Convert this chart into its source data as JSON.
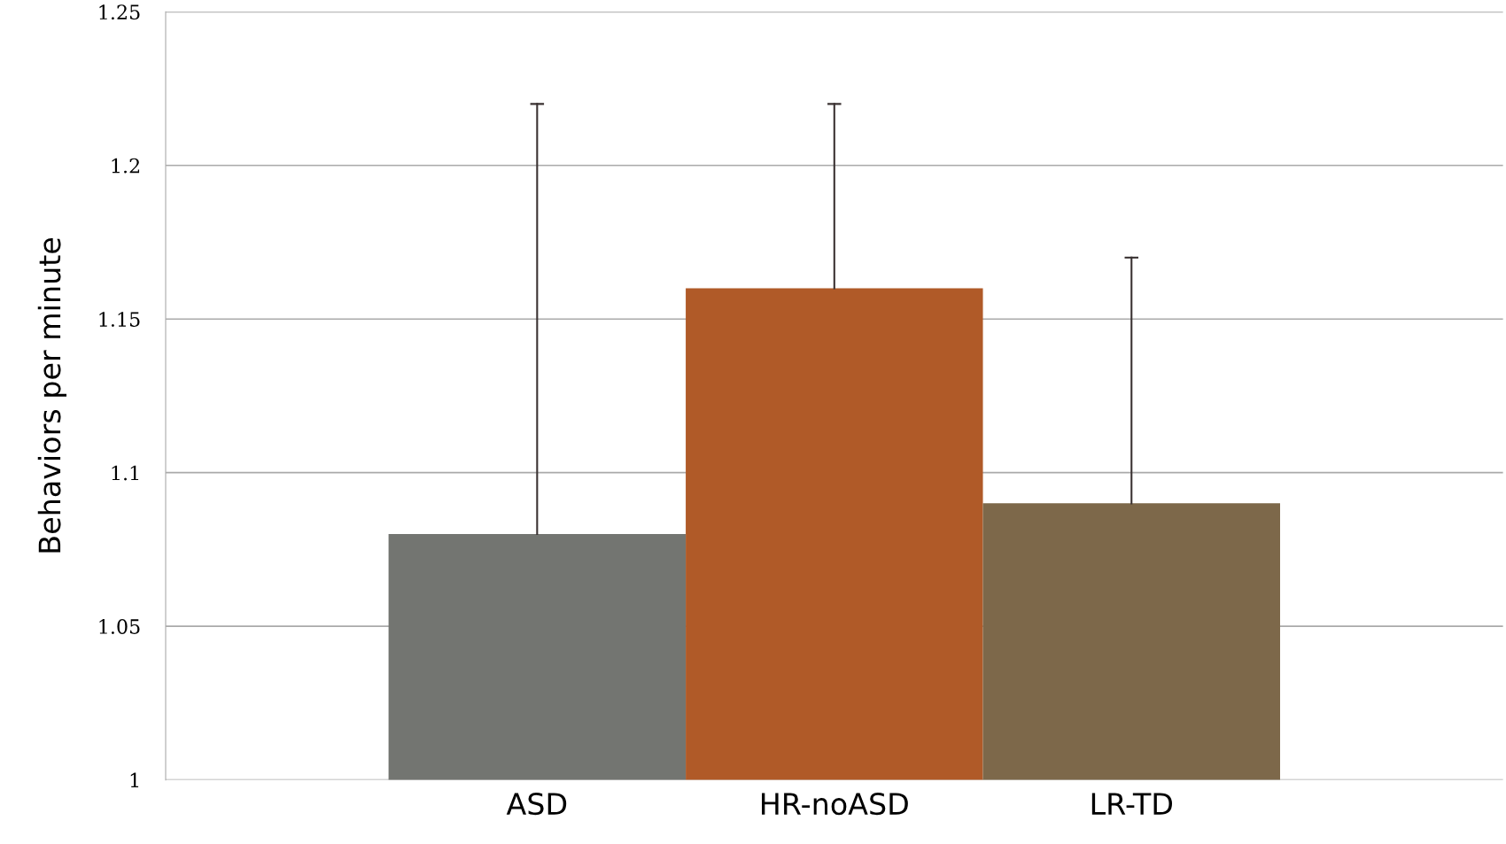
{
  "chart_data": {
    "type": "bar",
    "ylabel": "Behaviors per minute",
    "categories": [
      "ASD",
      "HR-noASD",
      "LR-TD"
    ],
    "values": [
      1.08,
      1.16,
      1.09
    ],
    "colors": [
      "#737571",
      "#b05a28",
      "#7d684a"
    ],
    "errors": [
      [
        1.08,
        1.22
      ],
      [
        1.16,
        1.22
      ],
      [
        1.09,
        1.17
      ]
    ],
    "ylim": [
      1,
      1.25
    ],
    "yticks": [
      1,
      1.05,
      1.1,
      1.15,
      1.2,
      1.25
    ],
    "grid": "y"
  }
}
